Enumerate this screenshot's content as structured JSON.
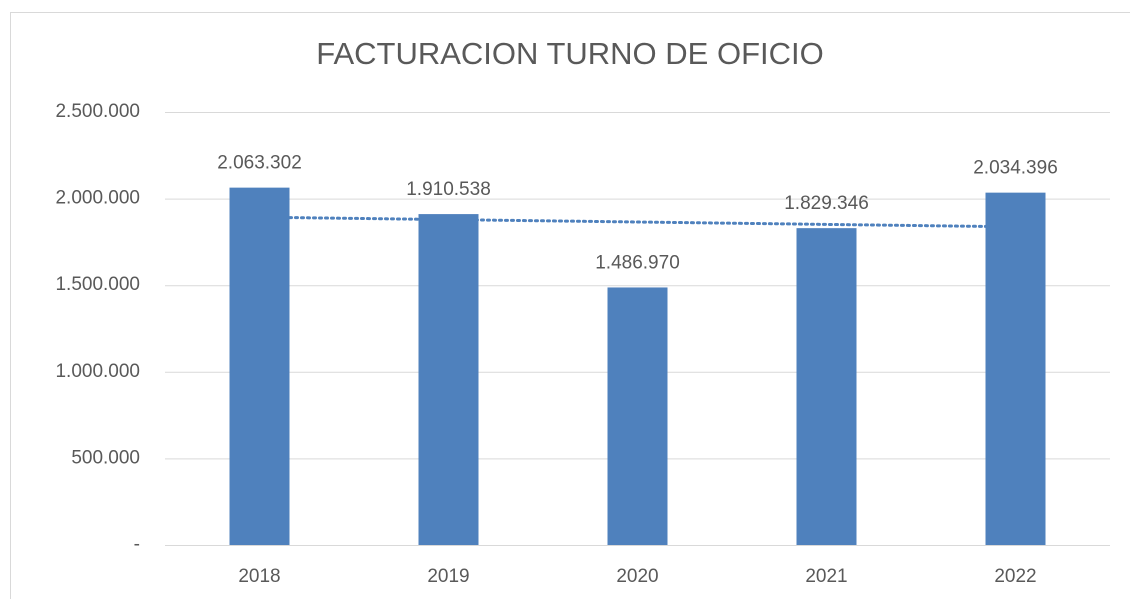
{
  "chart_data": {
    "type": "bar",
    "title": "FACTURACION TURNO DE OFICIO",
    "categories": [
      "2018",
      "2019",
      "2020",
      "2021",
      "2022"
    ],
    "values": [
      2063302,
      1910538,
      1486970,
      1829346,
      2034396
    ],
    "value_labels": [
      "2.063.302",
      "1.910.538",
      "1.486.970",
      "1.829.346",
      "2.034.396"
    ],
    "color": "#4f81bd",
    "ylim": [
      0,
      2500000
    ],
    "yticks": [
      {
        "value": 0,
        "label": "-"
      },
      {
        "value": 500000,
        "label": "500.000"
      },
      {
        "value": 1000000,
        "label": "1.000.000"
      },
      {
        "value": 1500000,
        "label": "1.500.000"
      },
      {
        "value": 2000000,
        "label": "2.000.000"
      },
      {
        "value": 2500000,
        "label": "2.500.000"
      }
    ],
    "grid": true,
    "trendline": "linear"
  }
}
